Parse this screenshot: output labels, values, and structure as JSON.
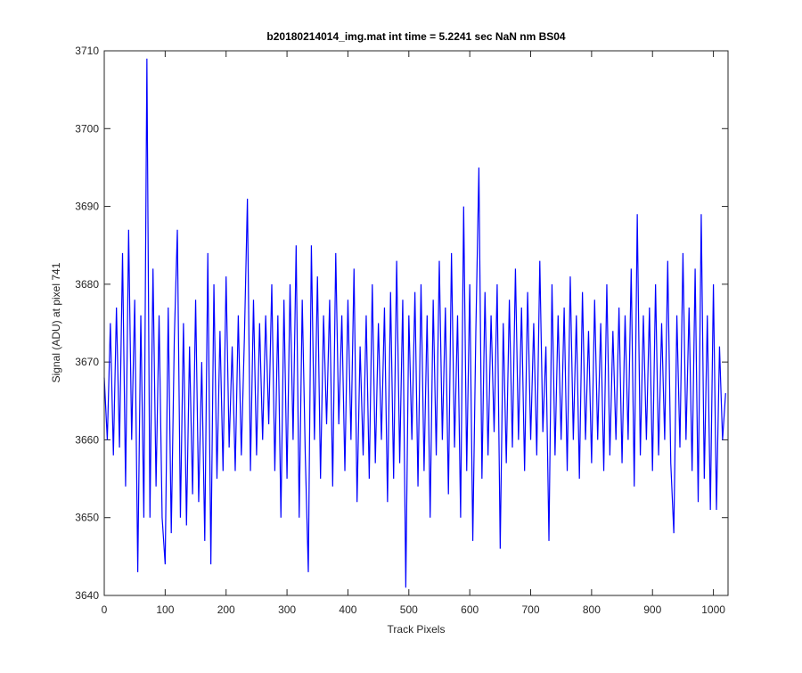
{
  "chart_data": {
    "type": "line",
    "title": "b20180214014_img.mat int time = 5.2241 sec  NaN nm BS04",
    "x_label": "Track Pixels",
    "y_label": "Signal (ADU) at pixel 741",
    "xlim": [
      0,
      1024
    ],
    "ylim": [
      3640,
      3710
    ],
    "xticks": [
      0,
      100,
      200,
      300,
      400,
      500,
      600,
      700,
      800,
      900,
      1000
    ],
    "yticks": [
      3640,
      3650,
      3660,
      3670,
      3680,
      3690,
      3700,
      3710
    ],
    "grid": false,
    "x": [
      0,
      5,
      10,
      15,
      20,
      25,
      30,
      35,
      40,
      45,
      50,
      55,
      60,
      65,
      70,
      75,
      80,
      85,
      90,
      95,
      100,
      105,
      110,
      115,
      120,
      125,
      130,
      135,
      140,
      145,
      150,
      155,
      160,
      165,
      170,
      175,
      180,
      185,
      190,
      195,
      200,
      205,
      210,
      215,
      220,
      225,
      230,
      235,
      240,
      245,
      250,
      255,
      260,
      265,
      270,
      275,
      280,
      285,
      290,
      295,
      300,
      305,
      310,
      315,
      320,
      325,
      330,
      335,
      340,
      345,
      350,
      355,
      360,
      365,
      370,
      375,
      380,
      385,
      390,
      395,
      400,
      405,
      410,
      415,
      420,
      425,
      430,
      435,
      440,
      445,
      450,
      455,
      460,
      465,
      470,
      475,
      480,
      485,
      490,
      495,
      500,
      505,
      510,
      515,
      520,
      525,
      530,
      535,
      540,
      545,
      550,
      555,
      560,
      565,
      570,
      575,
      580,
      585,
      590,
      595,
      600,
      605,
      610,
      615,
      620,
      625,
      630,
      635,
      640,
      645,
      650,
      655,
      660,
      665,
      670,
      675,
      680,
      685,
      690,
      695,
      700,
      705,
      710,
      715,
      720,
      725,
      730,
      735,
      740,
      745,
      750,
      755,
      760,
      765,
      770,
      775,
      780,
      785,
      790,
      795,
      800,
      805,
      810,
      815,
      820,
      825,
      830,
      835,
      840,
      845,
      850,
      855,
      860,
      865,
      870,
      875,
      880,
      885,
      890,
      895,
      900,
      905,
      910,
      915,
      920,
      925,
      930,
      935,
      940,
      945,
      950,
      955,
      960,
      965,
      970,
      975,
      980,
      985,
      990,
      995,
      1000,
      1005,
      1010,
      1015,
      1020
    ],
    "series": [
      {
        "name": "signal",
        "color": "#0000ff",
        "values": [
          3668,
          3660,
          3675,
          3658,
          3677,
          3659,
          3684,
          3654,
          3687,
          3660,
          3678,
          3643,
          3676,
          3650,
          3709,
          3650,
          3682,
          3654,
          3676,
          3650,
          3644,
          3677,
          3648,
          3673,
          3687,
          3650,
          3675,
          3649,
          3672,
          3653,
          3678,
          3652,
          3670,
          3647,
          3684,
          3644,
          3680,
          3655,
          3674,
          3656,
          3681,
          3659,
          3672,
          3656,
          3676,
          3658,
          3673,
          3691,
          3656,
          3678,
          3658,
          3675,
          3660,
          3676,
          3662,
          3680,
          3656,
          3676,
          3650,
          3678,
          3655,
          3680,
          3660,
          3685,
          3650,
          3678,
          3658,
          3643,
          3685,
          3660,
          3681,
          3655,
          3676,
          3662,
          3678,
          3654,
          3684,
          3662,
          3676,
          3656,
          3678,
          3660,
          3682,
          3652,
          3672,
          3658,
          3676,
          3655,
          3680,
          3657,
          3675,
          3660,
          3677,
          3652,
          3679,
          3655,
          3683,
          3657,
          3678,
          3641,
          3676,
          3660,
          3679,
          3654,
          3680,
          3656,
          3676,
          3650,
          3678,
          3658,
          3683,
          3660,
          3677,
          3653,
          3684,
          3659,
          3676,
          3650,
          3690,
          3656,
          3680,
          3647,
          3674,
          3695,
          3655,
          3679,
          3658,
          3676,
          3661,
          3680,
          3646,
          3675,
          3657,
          3678,
          3659,
          3682,
          3660,
          3677,
          3656,
          3679,
          3660,
          3675,
          3658,
          3683,
          3661,
          3672,
          3647,
          3680,
          3658,
          3676,
          3660,
          3677,
          3656,
          3681,
          3660,
          3676,
          3655,
          3679,
          3660,
          3674,
          3657,
          3678,
          3660,
          3675,
          3656,
          3680,
          3658,
          3674,
          3660,
          3677,
          3657,
          3676,
          3660,
          3682,
          3654,
          3689,
          3658,
          3676,
          3660,
          3677,
          3656,
          3680,
          3658,
          3675,
          3660,
          3683,
          3657,
          3648,
          3676,
          3659,
          3684,
          3660,
          3677,
          3656,
          3682,
          3652,
          3689,
          3655,
          3676,
          3651,
          3680,
          3651,
          3672,
          3660,
          3666
        ]
      }
    ]
  }
}
